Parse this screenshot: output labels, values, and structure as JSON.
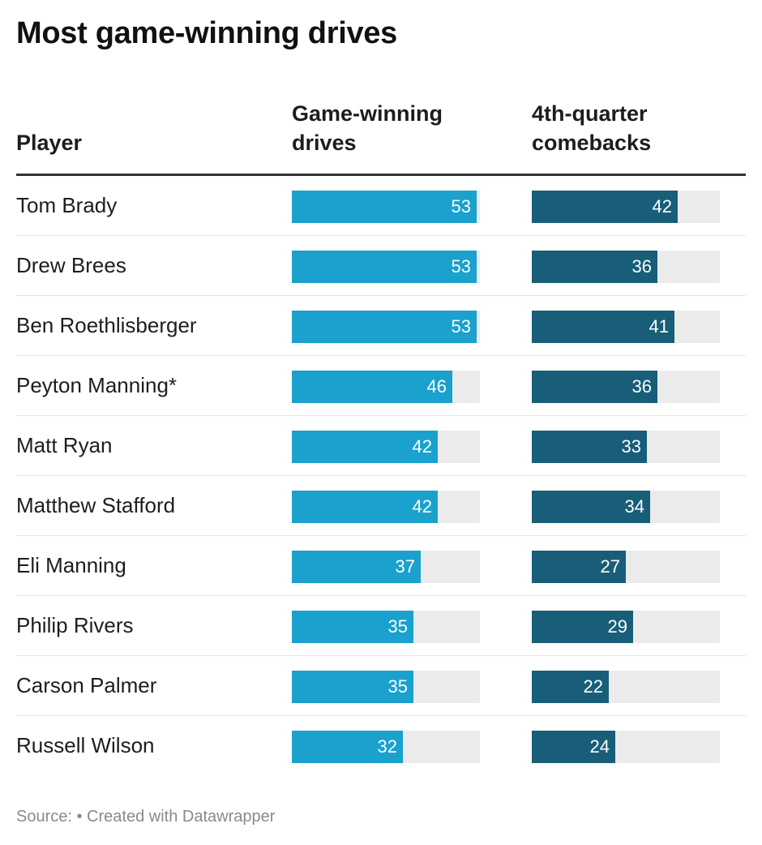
{
  "title": "Most game-winning drives",
  "headers": {
    "player": "Player",
    "gwd": "Game-winning\ndrives",
    "comebacks": "4th-quarter\ncomebacks"
  },
  "footer": "Source: • Created with Datawrapper",
  "colors": {
    "gwd_bar": "#1aa1cd",
    "comebacks_bar": "#195e78",
    "track": "#ebebeb"
  },
  "chart_data": {
    "type": "table",
    "title": "Most game-winning drives",
    "columns": [
      "Player",
      "Game-winning drives",
      "4th-quarter comebacks"
    ],
    "bar_scale_max": 54,
    "rows": [
      {
        "player": "Tom Brady",
        "gwd": 53,
        "comebacks": 42
      },
      {
        "player": "Drew Brees",
        "gwd": 53,
        "comebacks": 36
      },
      {
        "player": "Ben Roethlisberger",
        "gwd": 53,
        "comebacks": 41
      },
      {
        "player": "Peyton Manning*",
        "gwd": 46,
        "comebacks": 36
      },
      {
        "player": "Matt Ryan",
        "gwd": 42,
        "comebacks": 33
      },
      {
        "player": "Matthew Stafford",
        "gwd": 42,
        "comebacks": 34
      },
      {
        "player": "Eli Manning",
        "gwd": 37,
        "comebacks": 27
      },
      {
        "player": "Philip Rivers",
        "gwd": 35,
        "comebacks": 29
      },
      {
        "player": "Carson Palmer",
        "gwd": 35,
        "comebacks": 22
      },
      {
        "player": "Russell Wilson",
        "gwd": 32,
        "comebacks": 24
      }
    ]
  }
}
